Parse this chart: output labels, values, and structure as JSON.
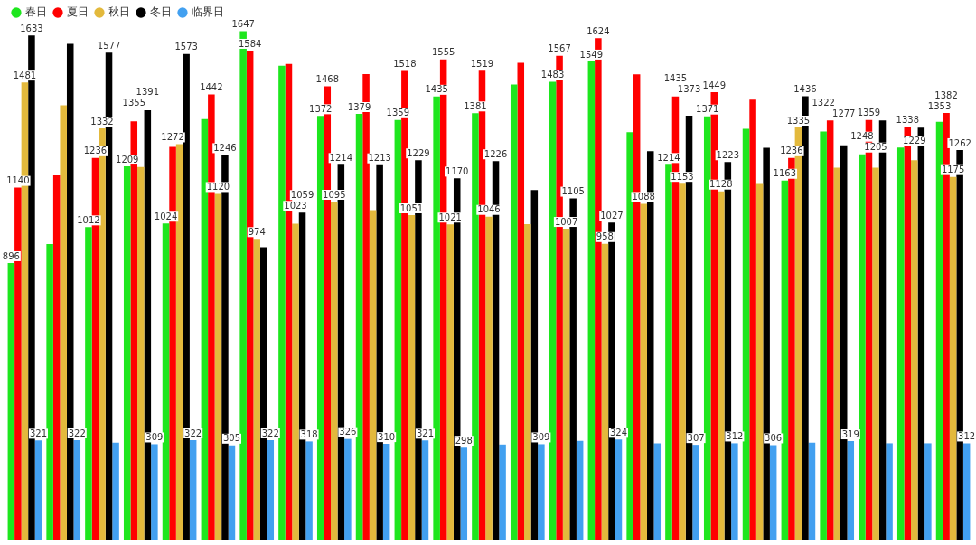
{
  "chart_data": {
    "type": "bar",
    "categories": [
      null,
      null,
      null,
      null,
      null,
      null,
      null,
      null,
      null,
      null,
      null,
      null,
      null,
      null,
      null,
      null,
      null,
      null,
      null,
      null,
      null,
      null,
      null,
      null,
      null
    ],
    "ylim": [
      0,
      1660
    ],
    "grid": false,
    "tick_labels": false,
    "legend": "top left",
    "series": [
      {
        "name": "春日",
        "color": "#1ee61e",
        "values": [
          896,
          957,
          1012,
          1209,
          1024,
          1362,
          1647,
          1535,
          1372,
          1379,
          1359,
          1435,
          1381,
          1474,
          1483,
          1549,
          1320,
          1214,
          1371,
          1331,
          1163,
          1322,
          1248,
          1270,
          1353
        ],
        "value_labels": [
          "896",
          null,
          "1012",
          "1209",
          "1024",
          null,
          "1647",
          null,
          "1372",
          "1379",
          "1359",
          "1435",
          "1381",
          null,
          "1483",
          "1549",
          null,
          "1214",
          "1371",
          null,
          "1163",
          "1322",
          "1248",
          null,
          "1353"
        ]
      },
      {
        "name": "夏日",
        "color": "#ff0000",
        "values": [
          1140,
          1180,
          1236,
          1355,
          1272,
          1442,
          1584,
          1541,
          1468,
          1508,
          1518,
          1555,
          1519,
          1544,
          1567,
          1624,
          1507,
          1435,
          1449,
          1425,
          1236,
          1358,
          1359,
          1338,
          1382
        ],
        "value_labels": [
          "1140",
          null,
          "1236",
          "1355",
          "1272",
          "1442",
          "1584",
          null,
          "1468",
          null,
          "1518",
          "1555",
          "1519",
          null,
          "1567",
          "1624",
          null,
          "1435",
          "1449",
          null,
          "1236",
          null,
          "1359",
          "1338",
          "1382"
        ]
      },
      {
        "name": "秋日",
        "color": "#e3b93c",
        "values": [
          1481,
          1407,
          1332,
          1207,
          1281,
          1120,
          974,
          1023,
          1095,
          1067,
          1051,
          1021,
          1046,
          1022,
          1007,
          958,
          1088,
          1153,
          1128,
          1152,
          1335,
          1205,
          1205,
          1229,
          1175
        ],
        "value_labels": [
          "1481",
          null,
          "1332",
          null,
          null,
          "1120",
          "974",
          "1023",
          "1095",
          null,
          "1051",
          "1021",
          "1046",
          null,
          "1007",
          "958",
          "1088",
          "1153",
          "1128",
          null,
          "1335",
          null,
          "1205",
          "1229",
          "1175"
        ]
      },
      {
        "name": "冬日",
        "color": "#000000",
        "values": [
          1633,
          1606,
          1577,
          1391,
          1573,
          1246,
          947,
          1059,
          1214,
          1213,
          1229,
          1170,
          1226,
          1132,
          1105,
          1027,
          1258,
          1373,
          1223,
          1269,
          1436,
          1277,
          1358,
          1334,
          1262
        ],
        "value_labels": [
          "1633",
          null,
          "1577",
          "1391",
          "1573",
          "1246",
          null,
          "1059",
          "1214",
          "1213",
          "1229",
          "1170",
          "1226",
          null,
          "1105",
          "1027",
          null,
          "1373",
          "1223",
          null,
          "1436",
          "1277",
          null,
          null,
          "1262"
        ]
      },
      {
        "name": "临界日",
        "color": "#42a0f0",
        "values": [
          321,
          322,
          314,
          309,
          322,
          305,
          322,
          318,
          326,
          310,
          321,
          298,
          308,
          309,
          320,
          324,
          312,
          307,
          312,
          306,
          314,
          319,
          312,
          312,
          312
        ],
        "value_labels": [
          "321",
          "322",
          null,
          "309",
          "322",
          "305",
          "322",
          "318",
          "326",
          "310",
          "321",
          "298",
          null,
          "309",
          null,
          "324",
          null,
          "307",
          "312",
          "306",
          null,
          "319",
          null,
          null,
          "312"
        ]
      }
    ]
  }
}
